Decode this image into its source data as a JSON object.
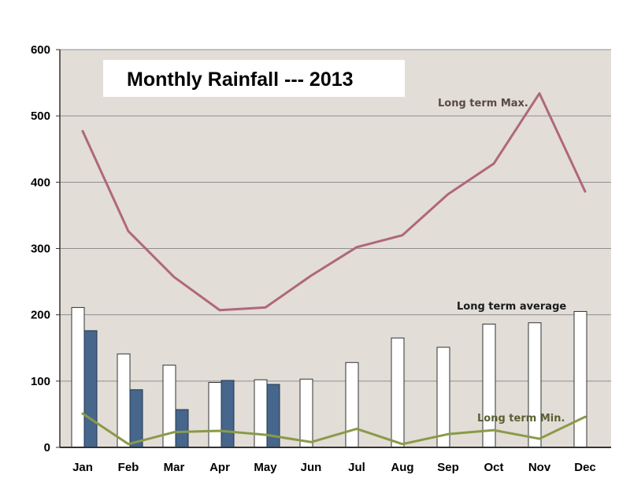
{
  "chart_data": {
    "type": "bar",
    "title": "Monthly Rainfall --- 2013",
    "categories": [
      "Jan",
      "Feb",
      "Mar",
      "Apr",
      "May",
      "Jun",
      "Jul",
      "Aug",
      "Sep",
      "Oct",
      "Nov",
      "Dec"
    ],
    "series": [
      {
        "name": "Long term average",
        "type": "bar",
        "color": "#ffffff",
        "values": [
          211,
          141,
          124,
          98,
          102,
          103,
          128,
          165,
          151,
          186,
          188,
          205
        ]
      },
      {
        "type": "bar",
        "color": "#46668c",
        "values": [
          176,
          87,
          57,
          101,
          95,
          null,
          null,
          null,
          null,
          null,
          null,
          null
        ]
      },
      {
        "name": "Long term Max.",
        "type": "line",
        "color": "#b06878",
        "values": [
          477,
          326,
          257,
          207,
          211,
          259,
          302,
          320,
          382,
          428,
          534,
          386
        ]
      },
      {
        "name": "Long term Min.",
        "type": "line",
        "color": "#8a9a48",
        "values": [
          51,
          5,
          23,
          25,
          19,
          8,
          28,
          5,
          20,
          26,
          13,
          46
        ]
      }
    ],
    "yticks": [
      0,
      100,
      200,
      300,
      400,
      500,
      600
    ],
    "ylim": [
      0,
      600
    ],
    "grid": true,
    "background": "#e2ddd7",
    "annotations": {
      "max": "Long term Max.",
      "avg": "Long term average",
      "min": "Long term Min."
    }
  }
}
